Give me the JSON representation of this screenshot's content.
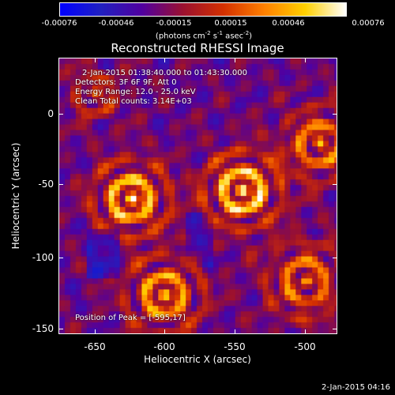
{
  "colorbar": {
    "ticks": [
      "-0.00076",
      "-0.00046",
      "-0.00015",
      "0.00015",
      "0.00046",
      "0.00076"
    ],
    "unit_pre": "(photons cm",
    "unit_sup1": "-2",
    "unit_mid": " s",
    "unit_sup2": "-1",
    "unit_mid2": " asec",
    "unit_sup3": "-2",
    "unit_post": ")",
    "colors": [
      "#0000ff",
      "#2020c0",
      "#5000a0",
      "#9a1030",
      "#d43000",
      "#ff8000",
      "#ffd000",
      "#ffffff"
    ]
  },
  "header": {
    "title": "Reconstructed RHESSI Image"
  },
  "annotations": {
    "time_range": "2-Jan-2015 01:38:40.000 to 01:43:30.000",
    "detectors": "Detectors: 3F 6F 9F, Att 0",
    "energy_range": "Energy Range: 12.0 - 25.0 keV",
    "clean_counts": "Clean     Total counts: 3.14E+03",
    "peak_position": "Position of Peak = [-595,17]"
  },
  "axes": {
    "x_label": "Heliocentric X (arcsec)",
    "y_label": "Heliocentric Y (arcsec)",
    "x_ticks": [
      "-650",
      "-600",
      "-550",
      "-500"
    ],
    "y_ticks": [
      "0",
      "-50",
      "-100",
      "-150"
    ]
  },
  "footer": {
    "timestamp": "2-Jan-2015 04:16"
  }
}
